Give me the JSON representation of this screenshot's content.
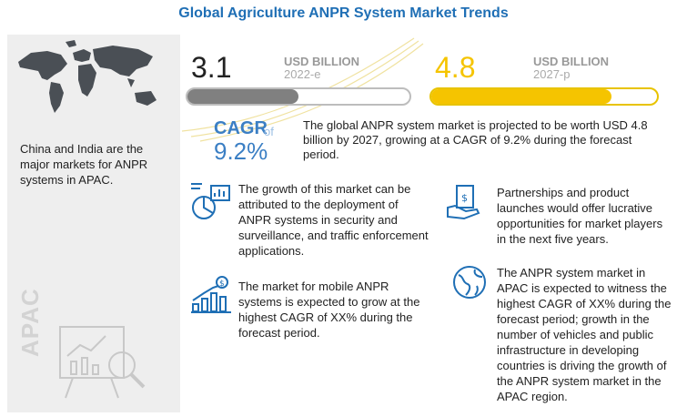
{
  "title": "Global Agriculture ANPR System Market Trends",
  "market": {
    "value_2022": "3.1",
    "unit_2022": "USD BILLION",
    "year_2022": "2022-e",
    "value_2027": "4.8",
    "unit_2027": "USD BILLION",
    "year_2027": "2027-p",
    "bar_2022_fraction": 0.5,
    "bar_2027_fraction": 0.8
  },
  "cagr": {
    "label": "CAGR",
    "of": "of",
    "value": "9.2%",
    "description": "The global ANPR system market is projected to be worth USD 4.8 billion  by 2027, growing at a CAGR of 9.2% during the forecast period."
  },
  "left": {
    "region_text": "China and India are the major markets for ANPR systems in APAC.",
    "apac_label": "APAC"
  },
  "points": [
    "The growth of this market can be attributed to the deployment of ANPR systems in security and surveillance, and traffic enforcement applications.",
    "The market for mobile ANPR systems is expected to grow at the highest CAGR of XX% during the forecast period.",
    "Partnerships and product launches would offer lucrative opportunities for market players in the next five years.",
    "The ANPR system market in APAC is expected to witness the highest CAGR of XX% during the forecast period; growth in the number of vehicles and public infrastructure in developing countries is driving the growth of the ANPR system market in the APAC region."
  ],
  "colors": {
    "title": "#1f6fb5",
    "cagr": "#3b7fc4",
    "bar_grey": "#808080",
    "bar_yellow": "#f5c400"
  }
}
